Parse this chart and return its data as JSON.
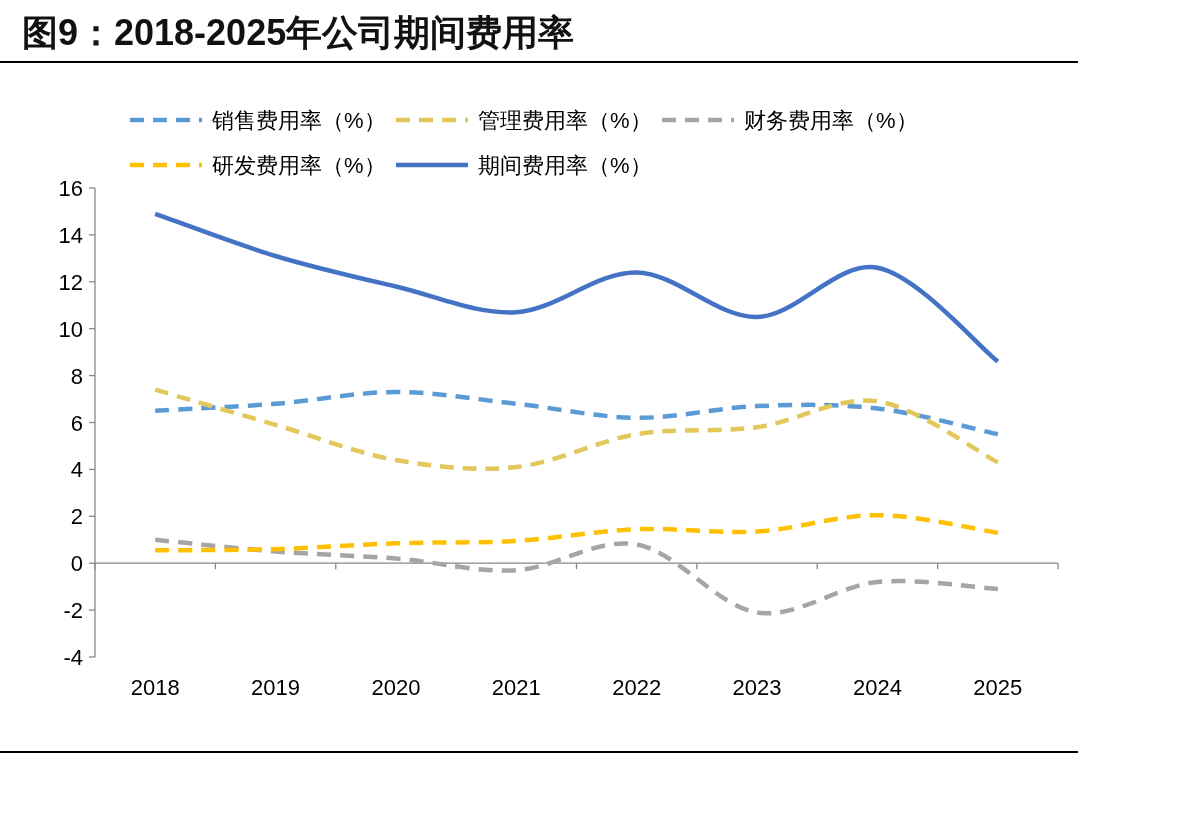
{
  "chart_data": {
    "type": "line",
    "title": "图9：2018-2025年公司期间费用率",
    "categories": [
      "2018",
      "2019",
      "2020",
      "2021",
      "2022",
      "2023",
      "2024",
      "2025"
    ],
    "series": [
      {
        "name": "销售费用率（%）",
        "color": "#5b9bd5",
        "line_style": "dashed",
        "values": [
          6.5,
          6.8,
          7.3,
          6.8,
          6.2,
          6.7,
          6.6,
          5.5
        ]
      },
      {
        "name": "管理费用率（%）",
        "color": "#e2c75a",
        "line_style": "dashed",
        "values": [
          7.4,
          5.9,
          4.4,
          4.1,
          5.5,
          5.8,
          6.9,
          4.3
        ]
      },
      {
        "name": "财务费用率（%）",
        "color": "#a5a5a5",
        "line_style": "dashed",
        "values": [
          1.0,
          0.5,
          0.2,
          -0.3,
          0.8,
          -2.1,
          -0.8,
          -1.1
        ]
      },
      {
        "name": "研发费用率（%）",
        "color": "#ffc000",
        "line_style": "dashed",
        "values": [
          0.55,
          0.6,
          0.85,
          0.95,
          1.45,
          1.35,
          2.05,
          1.3
        ]
      },
      {
        "name": "期间费用率（%）",
        "color": "#4472c4",
        "line_style": "solid",
        "values": [
          14.9,
          13.1,
          11.8,
          10.7,
          12.4,
          10.5,
          12.6,
          8.6
        ]
      }
    ],
    "ylim": [
      -4,
      16
    ],
    "yticks": [
      -4,
      -2,
      0,
      2,
      4,
      6,
      8,
      10,
      12,
      14,
      16
    ],
    "legend": "top"
  }
}
